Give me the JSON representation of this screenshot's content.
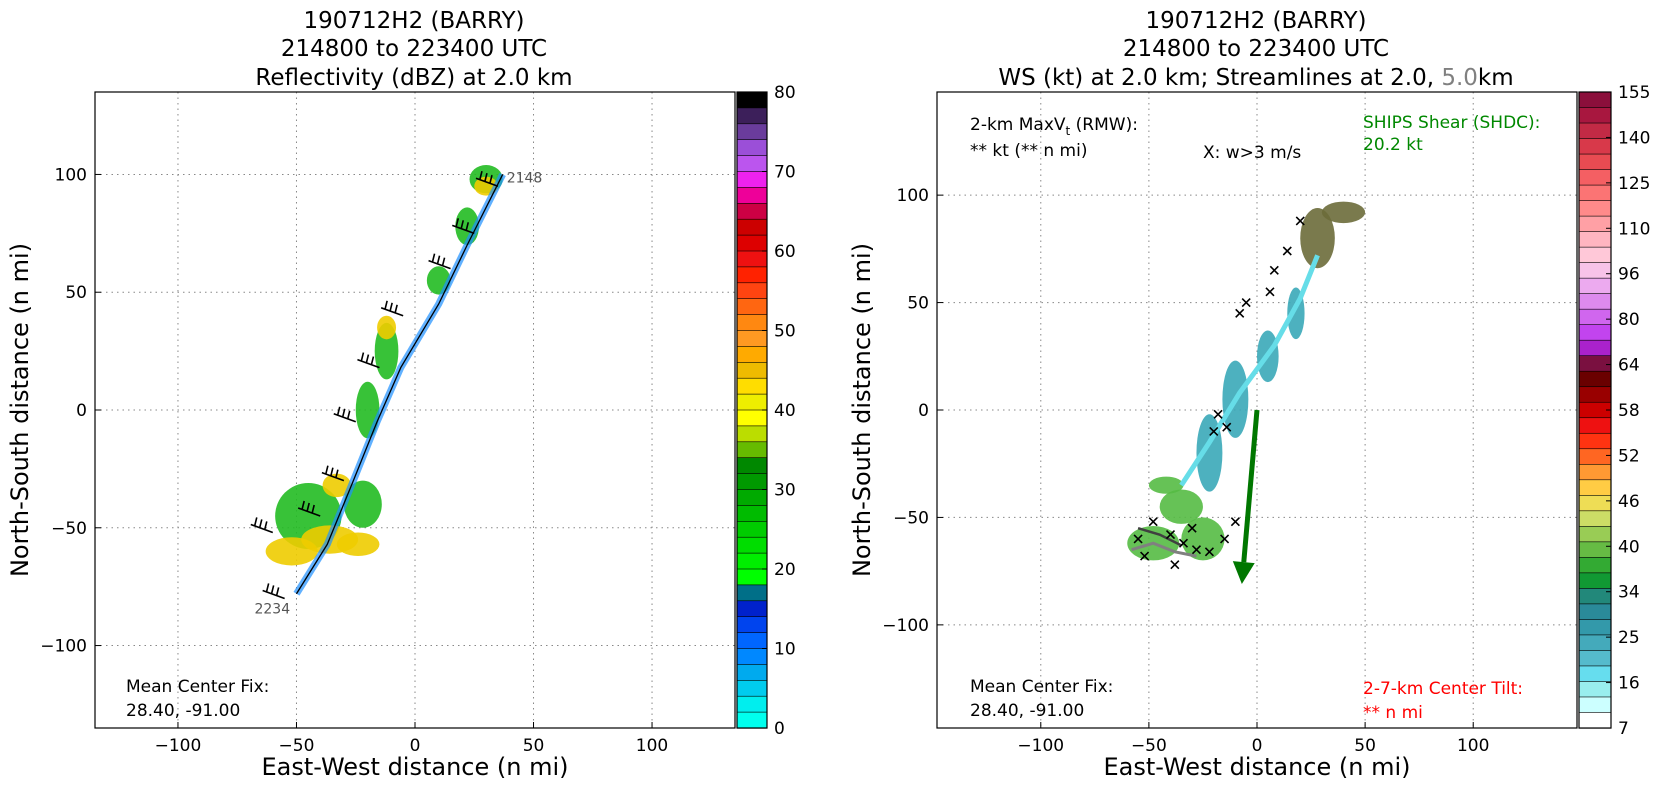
{
  "chart_data": [
    {
      "type": "heatmap",
      "title_lines": [
        "190712H2 (BARRY)",
        "214800 to 223400 UTC",
        "Reflectivity (dBZ) at 2.0 km"
      ],
      "xlabel": "East-West distance (n mi)",
      "ylabel": "North-South distance (n mi)",
      "xlim": [
        -135,
        135
      ],
      "ylim": [
        -135,
        135
      ],
      "xticks": [
        -100,
        -50,
        0,
        50,
        100
      ],
      "yticks": [
        -100,
        -50,
        0,
        50,
        100
      ],
      "grid": true,
      "flight_track": {
        "points": [
          [
            -50,
            -78
          ],
          [
            -37,
            -57
          ],
          [
            -26,
            -30
          ],
          [
            -16,
            -5
          ],
          [
            -6,
            18
          ],
          [
            10,
            45
          ],
          [
            22,
            70
          ],
          [
            37,
            100
          ]
        ],
        "start_label": "2148",
        "end_label": "2234"
      },
      "echo_regions": [
        {
          "x": -52,
          "y": -60,
          "rx": 11,
          "ry": 6,
          "level": "yellow"
        },
        {
          "x": -36,
          "y": -55,
          "rx": 12,
          "ry": 6,
          "level": "yellow"
        },
        {
          "x": -24,
          "y": -57,
          "rx": 9,
          "ry": 5,
          "level": "yellow"
        },
        {
          "x": -33,
          "y": -32,
          "rx": 6,
          "ry": 5,
          "level": "yellow"
        },
        {
          "x": -12,
          "y": 35,
          "rx": 4,
          "ry": 5,
          "level": "yellow"
        },
        {
          "x": 30,
          "y": 95,
          "rx": 5,
          "ry": 4,
          "level": "yellow"
        },
        {
          "x": -45,
          "y": -45,
          "rx": 14,
          "ry": 14,
          "level": "green"
        },
        {
          "x": -22,
          "y": -40,
          "rx": 8,
          "ry": 10,
          "level": "green"
        },
        {
          "x": -20,
          "y": 0,
          "rx": 5,
          "ry": 12,
          "level": "green"
        },
        {
          "x": -12,
          "y": 25,
          "rx": 5,
          "ry": 12,
          "level": "green"
        },
        {
          "x": 10,
          "y": 55,
          "rx": 5,
          "ry": 6,
          "level": "green"
        },
        {
          "x": 22,
          "y": 78,
          "rx": 5,
          "ry": 8,
          "level": "green"
        },
        {
          "x": 30,
          "y": 98,
          "rx": 7,
          "ry": 6,
          "level": "green"
        }
      ],
      "wind_barb_points": [
        [
          -55,
          -80
        ],
        [
          -60,
          -52
        ],
        [
          -40,
          -45
        ],
        [
          -30,
          -30
        ],
        [
          -25,
          -5
        ],
        [
          -15,
          18
        ],
        [
          -5,
          40
        ],
        [
          15,
          60
        ],
        [
          25,
          75
        ],
        [
          35,
          95
        ]
      ],
      "annotation_lines": [
        "Mean Center Fix:",
        "28.40, -91.00"
      ],
      "colorbar": {
        "label_ticks": [
          "80",
          "70",
          "60",
          "50",
          "40",
          "30",
          "20",
          "10",
          "0"
        ],
        "colors": [
          "#000000",
          "#3c1f5a",
          "#6a3c9c",
          "#9b4fd8",
          "#bb55ee",
          "#ee22ee",
          "#ee0099",
          "#cc0044",
          "#cc0000",
          "#dd0000",
          "#ee1111",
          "#ff2200",
          "#ff4411",
          "#ff6611",
          "#ff8811",
          "#ff9922",
          "#ffaa00",
          "#eebb00",
          "#ffdd00",
          "#eeee00",
          "#ffff00",
          "#bbdd00",
          "#66bb00",
          "#008800",
          "#009900",
          "#00aa00",
          "#00bb00",
          "#00cc00",
          "#00dd00",
          "#00ee00",
          "#00ff00",
          "#006f88",
          "#0022cc",
          "#0044ee",
          "#0066ff",
          "#0088ff",
          "#00aaee",
          "#00ccee",
          "#00eeee",
          "#00ffee"
        ]
      }
    },
    {
      "type": "heatmap",
      "title_lines": [
        "190712H2 (BARRY)",
        "214800 to 223400 UTC"
      ],
      "title_line3_parts": [
        "WS (kt) at 2.0 km; Streamlines at 2.0, ",
        "5.0",
        "km"
      ],
      "xlabel": "East-West distance (n mi)",
      "ylabel": "North-South distance (n mi)",
      "xlim": [
        -148,
        148
      ],
      "ylim": [
        -148,
        148
      ],
      "xticks": [
        -100,
        -50,
        0,
        50,
        100
      ],
      "yticks": [
        -100,
        -50,
        0,
        50,
        100
      ],
      "grid": true,
      "streamline_level_colors": {
        "low": "#404040",
        "high": "#808080"
      },
      "shear_vector": {
        "from": [
          0,
          0
        ],
        "to": [
          -7,
          -81
        ],
        "color": "#007700"
      },
      "updraft_markers": [
        [
          20,
          88
        ],
        [
          14,
          74
        ],
        [
          8,
          65
        ],
        [
          6,
          55
        ],
        [
          -5,
          50
        ],
        [
          -8,
          45
        ],
        [
          -14,
          -8
        ],
        [
          -20,
          -10
        ],
        [
          -18,
          -2
        ],
        [
          -10,
          -52
        ],
        [
          -30,
          -55
        ],
        [
          -28,
          -65
        ],
        [
          -40,
          -58
        ],
        [
          -52,
          -68
        ],
        [
          -55,
          -60
        ],
        [
          -48,
          -52
        ],
        [
          -34,
          -62
        ],
        [
          -22,
          -66
        ],
        [
          -38,
          -72
        ],
        [
          -15,
          -60
        ]
      ],
      "speed_regions": [
        {
          "x": 28,
          "y": 80,
          "rx": 8,
          "ry": 14,
          "level": "dark"
        },
        {
          "x": 40,
          "y": 92,
          "rx": 10,
          "ry": 5,
          "level": "dark"
        },
        {
          "x": 18,
          "y": 45,
          "rx": 4,
          "ry": 12,
          "level": "teal"
        },
        {
          "x": 5,
          "y": 25,
          "rx": 5,
          "ry": 12,
          "level": "teal"
        },
        {
          "x": -10,
          "y": 5,
          "rx": 6,
          "ry": 18,
          "level": "teal"
        },
        {
          "x": -22,
          "y": -20,
          "rx": 6,
          "ry": 18,
          "level": "teal"
        },
        {
          "x": -35,
          "y": -45,
          "rx": 10,
          "ry": 8,
          "level": "green"
        },
        {
          "x": -48,
          "y": -62,
          "rx": 12,
          "ry": 8,
          "level": "green"
        },
        {
          "x": -25,
          "y": -60,
          "rx": 10,
          "ry": 10,
          "level": "green"
        },
        {
          "x": -42,
          "y": -35,
          "rx": 8,
          "ry": 4,
          "level": "green"
        }
      ],
      "annotations": {
        "max_wind_label": "2-km MaxV",
        "max_wind_sub": "t",
        "max_wind_suffix": " (RMW):",
        "max_wind_value": "** kt (** n mi)",
        "updraft_legend": "X: w>3 m/s",
        "shear_label": "SHIPS Shear (SHDC):",
        "shear_value": "20.2 kt",
        "center_fix_lines": [
          "Mean Center Fix:",
          "28.40, -91.00"
        ],
        "tilt_label": "2-7-km Center Tilt:",
        "tilt_value": "** n mi"
      },
      "annotation_colors": {
        "shear": "#008800",
        "tilt": "#ff0000"
      },
      "colorbar": {
        "label_ticks": [
          "155",
          "140",
          "125",
          "110",
          "96",
          "80",
          "64",
          "58",
          "52",
          "46",
          "40",
          "34",
          "25",
          "16",
          "7"
        ],
        "colors": [
          "#8b0f3b",
          "#a8173f",
          "#c22a45",
          "#d8394a",
          "#e84b52",
          "#f45f63",
          "#fb7474",
          "#ff8a8a",
          "#ffa0a5",
          "#ffb5c0",
          "#ffc8d8",
          "#f7c3e8",
          "#ecaaef",
          "#dd8aee",
          "#d066ee",
          "#c244ee",
          "#aa22cc",
          "#7a1040",
          "#6a0000",
          "#990000",
          "#cc0000",
          "#ee1111",
          "#ff3311",
          "#ff6622",
          "#ff9933",
          "#ffcc44",
          "#eedd55",
          "#ccdd66",
          "#99cc55",
          "#66bb44",
          "#33aa33",
          "#119933",
          "#22887a",
          "#2a8a99",
          "#3399aa",
          "#44aabb",
          "#55bbcc",
          "#66ddee",
          "#99eeee",
          "#ccffff",
          "#ffffff"
        ]
      }
    }
  ]
}
